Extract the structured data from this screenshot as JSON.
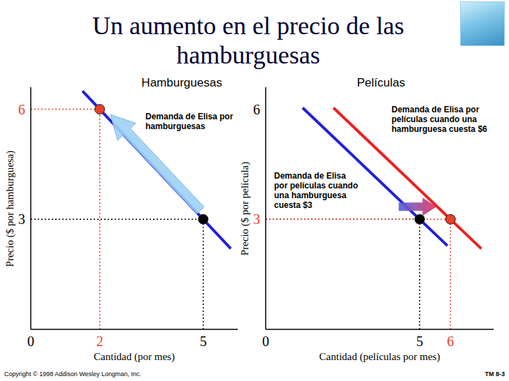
{
  "title": "Un aumento en el precio de las hamburguesas",
  "chart_data": [
    {
      "type": "line",
      "title": "Hamburguesas",
      "x_label": "Cantidad (por mes)",
      "y_label": "Precio ($ por hamburguesa)",
      "xlim": [
        0,
        6
      ],
      "ylim": [
        0,
        6.6
      ],
      "xticks": [
        0,
        2,
        5
      ],
      "yticks": [
        3,
        6
      ],
      "series": [
        {
          "name": "Demanda de Elisa por hamburguesas",
          "color": "#2020d8",
          "x": [
            1.5,
            5.8
          ],
          "values": [
            6.5,
            2.2
          ]
        }
      ],
      "points": [
        {
          "x": 5,
          "y": 3,
          "color": "#000000"
        },
        {
          "x": 2,
          "y": 6,
          "color": "#e8402a"
        }
      ]
    },
    {
      "type": "line",
      "title": "Películas",
      "x_label": "Cantidad (películas por mes)",
      "y_label": "Precio ($ por película)",
      "xlim": [
        0,
        7.4
      ],
      "ylim": [
        0,
        6.6
      ],
      "xticks": [
        0,
        5,
        6
      ],
      "yticks": [
        3,
        6
      ],
      "series": [
        {
          "name": "Demanda de Elisa por películas cuando una hamburguesa cuesta $3",
          "color": "#2020d8",
          "x": [
            1.2,
            5.9
          ],
          "values": [
            6.04,
            2.28
          ]
        },
        {
          "name": "Demanda de Elisa por películas cuando una hamburguesa cuesta $6",
          "color": "#ee2020",
          "x": [
            2.2,
            7.0
          ],
          "values": [
            6.04,
            2.2
          ]
        }
      ],
      "points": [
        {
          "x": 5,
          "y": 3,
          "color": "#000000"
        },
        {
          "x": 6,
          "y": 3,
          "color": "#e8402a"
        }
      ]
    }
  ],
  "footer": {
    "copyright": "Copyright © 1998 Addison Wesley Longman, Inc.",
    "page": "TM 8-3"
  }
}
